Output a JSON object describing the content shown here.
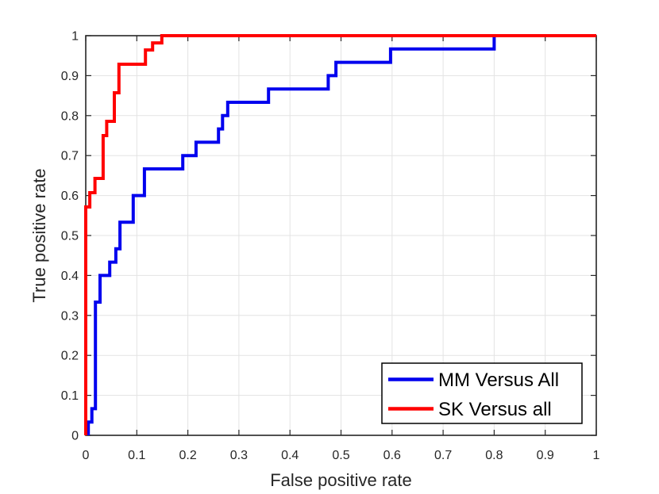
{
  "chart_data": {
    "type": "line",
    "subtype": "step-roc",
    "title": "",
    "xlabel": "False positive rate",
    "ylabel": "True positive rate",
    "xlim": [
      0,
      1
    ],
    "ylim": [
      0,
      1
    ],
    "grid": true,
    "legend_position": "inside-lower-right",
    "xticks": [
      0,
      0.1,
      0.2,
      0.3,
      0.4,
      0.5,
      0.6,
      0.7,
      0.8,
      0.9,
      1
    ],
    "xtick_labels": [
      "0",
      "0.1",
      "0.2",
      "0.3",
      "0.4",
      "0.5",
      "0.6",
      "0.7",
      "0.8",
      "0.9",
      "1"
    ],
    "yticks": [
      0,
      0.1,
      0.2,
      0.3,
      0.4,
      0.5,
      0.6,
      0.7,
      0.8,
      0.9,
      1
    ],
    "ytick_labels": [
      "0",
      "0.1",
      "0.2",
      "0.3",
      "0.4",
      "0.5",
      "0.6",
      "0.7",
      "0.8",
      "0.9",
      "1"
    ],
    "colors": {
      "axis": "#262626",
      "grid": "#e3e3e3",
      "legend_border": "#000000",
      "legend_background": "#ffffff"
    },
    "series": [
      {
        "name": "MM Versus All",
        "color": "#0000ee",
        "points": [
          [
            0.005,
            0
          ],
          [
            0.005,
            0.0333
          ],
          [
            0.012,
            0.0333
          ],
          [
            0.012,
            0.0667
          ],
          [
            0.019,
            0.0667
          ],
          [
            0.019,
            0.3333
          ],
          [
            0.028,
            0.3333
          ],
          [
            0.028,
            0.4
          ],
          [
            0.047,
            0.4
          ],
          [
            0.047,
            0.4333
          ],
          [
            0.059,
            0.4333
          ],
          [
            0.059,
            0.4667
          ],
          [
            0.067,
            0.4667
          ],
          [
            0.067,
            0.5333
          ],
          [
            0.093,
            0.5333
          ],
          [
            0.093,
            0.6
          ],
          [
            0.115,
            0.6
          ],
          [
            0.115,
            0.6667
          ],
          [
            0.19,
            0.6667
          ],
          [
            0.19,
            0.7
          ],
          [
            0.216,
            0.7
          ],
          [
            0.216,
            0.7333
          ],
          [
            0.26,
            0.7333
          ],
          [
            0.26,
            0.7667
          ],
          [
            0.268,
            0.7667
          ],
          [
            0.268,
            0.8
          ],
          [
            0.278,
            0.8
          ],
          [
            0.278,
            0.8333
          ],
          [
            0.358,
            0.8333
          ],
          [
            0.358,
            0.8667
          ],
          [
            0.475,
            0.8667
          ],
          [
            0.475,
            0.9
          ],
          [
            0.49,
            0.9
          ],
          [
            0.49,
            0.9333
          ],
          [
            0.597,
            0.9333
          ],
          [
            0.597,
            0.9667
          ],
          [
            0.8,
            0.9667
          ],
          [
            0.8,
            1
          ],
          [
            1,
            1
          ]
        ]
      },
      {
        "name": "SK Versus all",
        "color": "#ff0000",
        "points": [
          [
            0,
            0
          ],
          [
            0,
            0.5714
          ],
          [
            0.008,
            0.5714
          ],
          [
            0.008,
            0.6071
          ],
          [
            0.018,
            0.6071
          ],
          [
            0.018,
            0.6429
          ],
          [
            0.034,
            0.6429
          ],
          [
            0.034,
            0.75
          ],
          [
            0.041,
            0.75
          ],
          [
            0.041,
            0.7857
          ],
          [
            0.056,
            0.7857
          ],
          [
            0.056,
            0.8571
          ],
          [
            0.065,
            0.8571
          ],
          [
            0.065,
            0.9286
          ],
          [
            0.117,
            0.9286
          ],
          [
            0.117,
            0.9643
          ],
          [
            0.131,
            0.9643
          ],
          [
            0.131,
            0.982
          ],
          [
            0.149,
            0.982
          ],
          [
            0.149,
            1
          ],
          [
            1,
            1
          ]
        ]
      }
    ]
  }
}
